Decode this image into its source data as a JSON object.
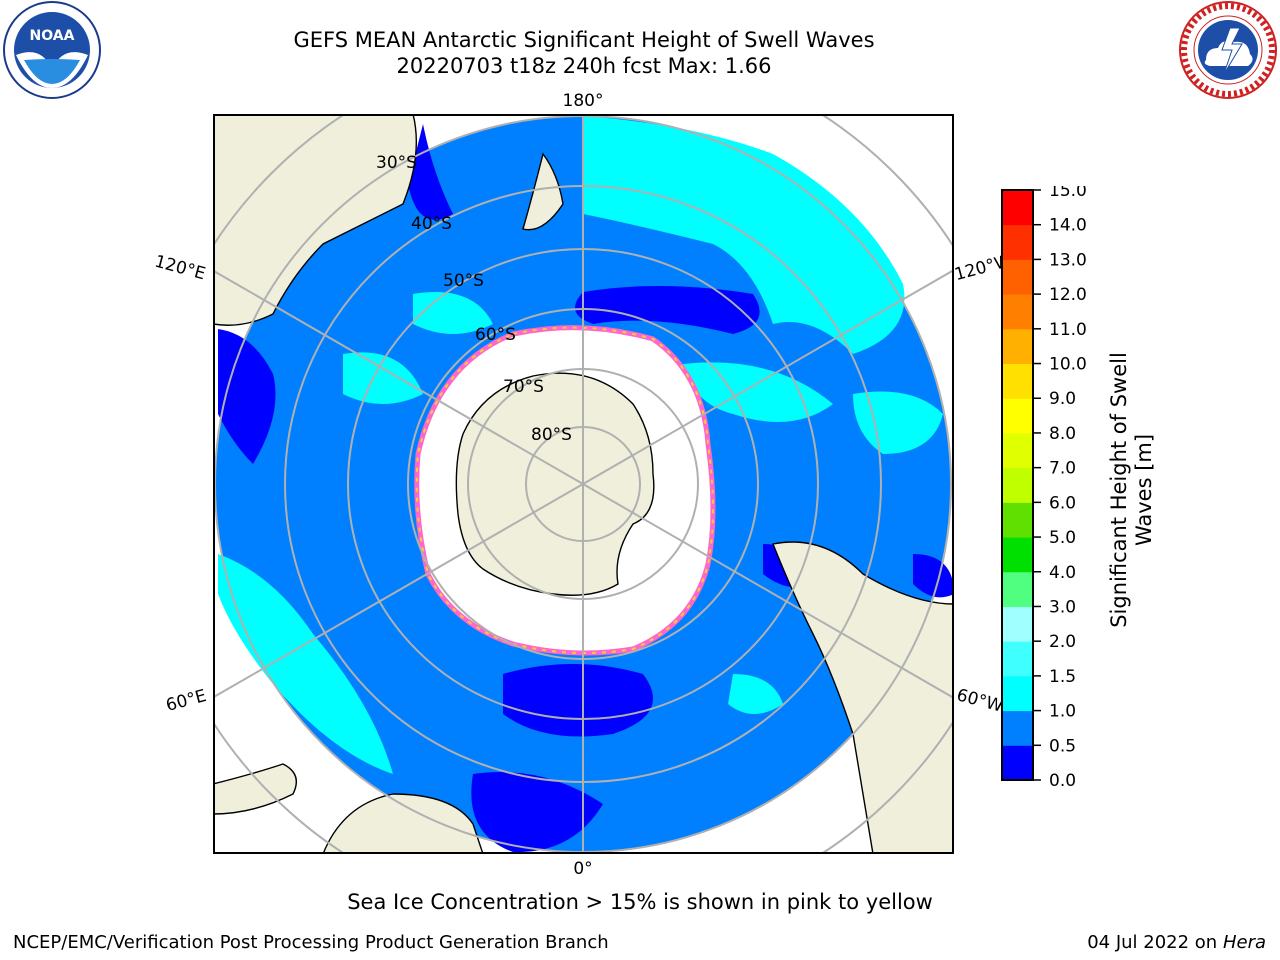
{
  "header": {
    "title_line1": "GEFS MEAN Antarctic Significant Height of Swell Waves",
    "title_line2": "20220703 t18z 240h fcst   Max: 1.66"
  },
  "logos": {
    "left": "noaa-logo",
    "left_text": "NOAA",
    "right": "nws-logo"
  },
  "map": {
    "projection": "south-polar-stereographic",
    "longitude_labels": {
      "top": "180°",
      "bottom": "0°",
      "left_upper": "120°E",
      "left_lower": "60°E",
      "right_upper": "120°W",
      "right_lower": "60°W"
    },
    "latitude_labels": [
      "30°S",
      "40°S",
      "50°S",
      "60°S",
      "70°S",
      "80°S"
    ],
    "colors": {
      "land": "#efefdc",
      "ocean_outside": "#ffffff",
      "sea_ice": "#ffffff",
      "ice_edge_pink": "#ff66cc",
      "ice_edge_yellow": "#ffcc33",
      "grid": "#b0b0b0"
    }
  },
  "colorbar": {
    "label": "Significant Height of Swell Waves [m]",
    "label_line1": "Significant Height of Swell",
    "label_line2": "Waves [m]",
    "ticks": [
      "0.0",
      "0.5",
      "1.0",
      "1.5",
      "2.0",
      "3.0",
      "4.0",
      "5.0",
      "6.0",
      "7.0",
      "8.0",
      "9.0",
      "10.0",
      "11.0",
      "12.0",
      "13.0",
      "14.0",
      "15.0"
    ],
    "colors": [
      "#0000ff",
      "#0080ff",
      "#00ffff",
      "#40ffff",
      "#a0ffff",
      "#50ff80",
      "#00e000",
      "#60e000",
      "#c0ff00",
      "#e0ff00",
      "#ffff00",
      "#ffe000",
      "#ffb000",
      "#ff8000",
      "#ff6000",
      "#ff3000",
      "#ff0000"
    ]
  },
  "footer": {
    "ice_note": "Sea Ice Concentration > 15% is shown in pink to yellow",
    "credit": "NCEP/EMC/Verification Post Processing Product Generation Branch",
    "date": "04 Jul 2022 on ",
    "host": "Hera"
  }
}
